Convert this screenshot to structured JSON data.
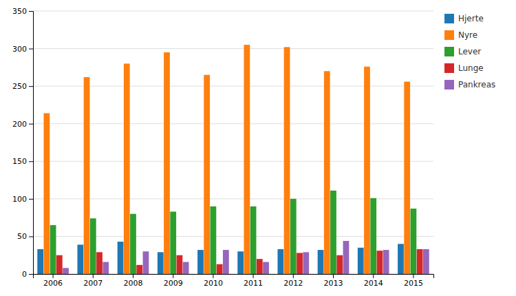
{
  "chart_data": {
    "type": "bar",
    "categories": [
      "2006",
      "2007",
      "2008",
      "2009",
      "2010",
      "2011",
      "2012",
      "2013",
      "2014",
      "2015"
    ],
    "series": [
      {
        "name": "Hjerte",
        "values": [
          33,
          39,
          43,
          29,
          32,
          30,
          33,
          32,
          35,
          40
        ]
      },
      {
        "name": "Nyre",
        "values": [
          214,
          262,
          280,
          295,
          265,
          305,
          302,
          270,
          276,
          256
        ]
      },
      {
        "name": "Lever",
        "values": [
          65,
          74,
          80,
          83,
          90,
          90,
          100,
          111,
          101,
          87
        ]
      },
      {
        "name": "Lunge",
        "values": [
          25,
          29,
          12,
          25,
          13,
          20,
          28,
          25,
          31,
          33
        ]
      },
      {
        "name": "Pankreas",
        "values": [
          8,
          16,
          30,
          16,
          32,
          16,
          29,
          44,
          32,
          33
        ]
      }
    ],
    "ylim": [
      0,
      350
    ],
    "yticks": [
      0,
      50,
      100,
      150,
      200,
      250,
      300,
      350
    ],
    "grid": true,
    "legend": "right"
  }
}
